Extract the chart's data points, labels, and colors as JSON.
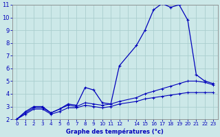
{
  "xlabel": "Graphe des températures (°c)",
  "background_color": "#cce8e8",
  "grid_color": "#aacece",
  "line_color": "#0000bb",
  "xlim": [
    -0.5,
    23.5
  ],
  "ylim": [
    2,
    11
  ],
  "yticks": [
    2,
    3,
    4,
    5,
    6,
    7,
    8,
    9,
    10,
    11
  ],
  "xtick_labels": [
    "0",
    "1",
    "2",
    "3",
    "4",
    "5",
    "6",
    "7",
    "8",
    "9",
    "1011",
    "12",
    "",
    "1415",
    "16",
    "17",
    "18",
    "19",
    "20",
    "21",
    "22",
    "23"
  ],
  "curve1_x": [
    0,
    1,
    2,
    3,
    4,
    5,
    6,
    7,
    8,
    9,
    10,
    11,
    12,
    14,
    15,
    16,
    17,
    18,
    19,
    20,
    21,
    22,
    23
  ],
  "curve1_y": [
    2.0,
    2.6,
    3.0,
    3.0,
    2.5,
    2.8,
    3.2,
    3.1,
    4.5,
    4.3,
    3.3,
    3.2,
    6.2,
    7.8,
    9.0,
    10.6,
    11.1,
    10.8,
    11.0,
    9.8,
    5.5,
    5.0,
    4.8
  ],
  "curve2_x": [
    0,
    1,
    2,
    3,
    4,
    5,
    6,
    7,
    8,
    9,
    10,
    11,
    12,
    14,
    15,
    16,
    17,
    18,
    19,
    20,
    21,
    22,
    23
  ],
  "curve2_y": [
    2.0,
    2.5,
    2.9,
    2.9,
    2.5,
    2.8,
    3.1,
    3.0,
    3.3,
    3.2,
    3.1,
    3.2,
    3.4,
    3.7,
    4.0,
    4.2,
    4.4,
    4.6,
    4.8,
    5.0,
    5.0,
    4.9,
    4.7
  ],
  "curve3_x": [
    0,
    1,
    2,
    3,
    4,
    5,
    6,
    7,
    8,
    9,
    10,
    11,
    12,
    14,
    15,
    16,
    17,
    18,
    19,
    20,
    21,
    22,
    23
  ],
  "curve3_y": [
    2.0,
    2.4,
    2.8,
    2.8,
    2.4,
    2.6,
    2.9,
    2.9,
    3.1,
    3.0,
    2.9,
    3.0,
    3.2,
    3.4,
    3.6,
    3.7,
    3.8,
    3.9,
    4.0,
    4.1,
    4.1,
    4.1,
    4.1
  ]
}
